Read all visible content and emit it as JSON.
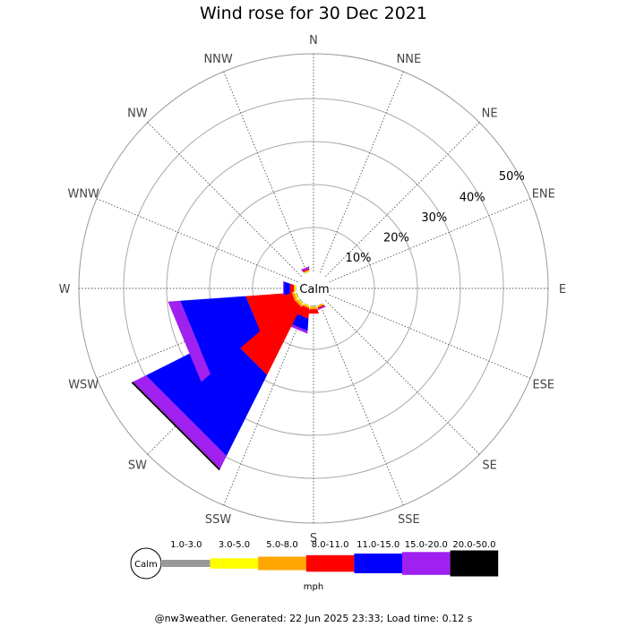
{
  "title": "Wind rose for 30 Dec 2021",
  "footer": "@nw3weather. Generated: 22 Jun 2025 23:33; Load time: 0.12 s",
  "calm_label": "Calm",
  "legend": {
    "calm_label": "Calm",
    "unit": "mph"
  },
  "chart_data": {
    "type": "wind-rose",
    "title": "Wind rose for 30 Dec 2021",
    "unit": "mph",
    "directions": [
      "N",
      "NNE",
      "NE",
      "ENE",
      "E",
      "ESE",
      "SE",
      "SSE",
      "S",
      "SSW",
      "SW",
      "WSW",
      "W",
      "WNW",
      "NW",
      "NNW"
    ],
    "radial_ticks": [
      "10%",
      "20%",
      "30%",
      "40%",
      "50%"
    ],
    "radial_max_percent": 50,
    "calm_radius_percent": 4,
    "grid": true,
    "speed_bins": [
      {
        "label": "1.0-3.0",
        "color": "#999999"
      },
      {
        "label": "3.0-5.0",
        "color": "#ffff00"
      },
      {
        "label": "5.0-8.0",
        "color": "#ffa500"
      },
      {
        "label": "8.0-11.0",
        "color": "#ff0000"
      },
      {
        "label": "11.0-15.0",
        "color": "#0000ff"
      },
      {
        "label": "15.0-20.0",
        "color": "#a020f0"
      },
      {
        "label": "20.0-50.0",
        "color": "#000000"
      }
    ],
    "frequencies_percent": {
      "N": [
        0,
        0,
        0,
        0,
        0,
        0,
        0
      ],
      "NNE": [
        0,
        0,
        0,
        0,
        0,
        0,
        0
      ],
      "NE": [
        0,
        0,
        0,
        0,
        0,
        0,
        0
      ],
      "ENE": [
        0,
        0,
        0,
        0,
        0,
        0,
        0
      ],
      "E": [
        0,
        0,
        0,
        0,
        0,
        0,
        0
      ],
      "ESE": [
        0,
        0,
        0,
        0,
        0,
        0,
        0
      ],
      "SE": [
        0,
        0,
        0,
        0,
        0,
        0,
        0
      ],
      "SSE": [
        0.1,
        0.1,
        0.3,
        0.3,
        0,
        0.3,
        0
      ],
      "S": [
        0.2,
        0.2,
        0.5,
        1.0,
        0,
        0,
        0
      ],
      "SSW": [
        0.1,
        0.2,
        0.4,
        2.3,
        2.7,
        0.6,
        0
      ],
      "SW": [
        0.2,
        0.3,
        0.6,
        16.8,
        20.0,
        3.2,
        0.4
      ],
      "WSW": [
        0.2,
        0.3,
        0.6,
        10.2,
        14.5,
        2.7,
        0
      ],
      "W": [
        0.1,
        0.3,
        0.2,
        0.9,
        1.4,
        0.2,
        0
      ],
      "WNW": [
        0,
        0,
        0,
        0,
        0,
        0,
        0
      ],
      "NW": [
        0,
        0,
        0,
        0,
        0,
        0,
        0
      ],
      "NNW": [
        0.1,
        0.2,
        0.1,
        0.3,
        0,
        0.5,
        0
      ]
    }
  }
}
